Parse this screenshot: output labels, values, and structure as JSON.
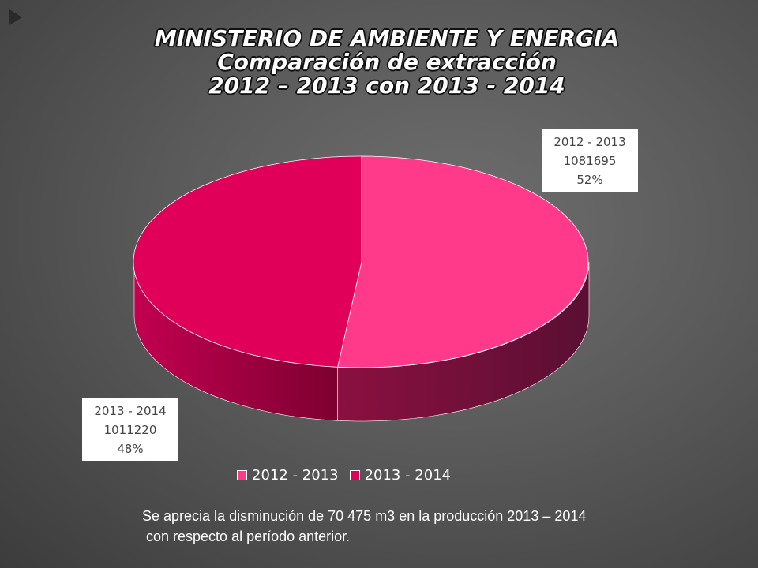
{
  "slide": {
    "title_lines": [
      "MINISTERIO DE AMBIENTE Y ENERGIA",
      "Comparación de extracción",
      "2012 – 2013 con 2013 - 2014"
    ],
    "note_lines": [
      "Se aprecia la disminución de 70 475 m3 en la producción 2013 – 2014",
      " con respecto al período anterior."
    ]
  },
  "chart_data": {
    "type": "pie",
    "title": "",
    "categories": [
      "2012 - 2013",
      "2013 - 2014"
    ],
    "values": [
      1081695,
      1011220
    ],
    "percent_labels": [
      "52%",
      "48%"
    ],
    "value_labels": [
      "1081695",
      "1011220"
    ],
    "colors": [
      "#ff3a8a",
      "#e0005a"
    ],
    "legend_position": "bottom",
    "three_d": true
  }
}
